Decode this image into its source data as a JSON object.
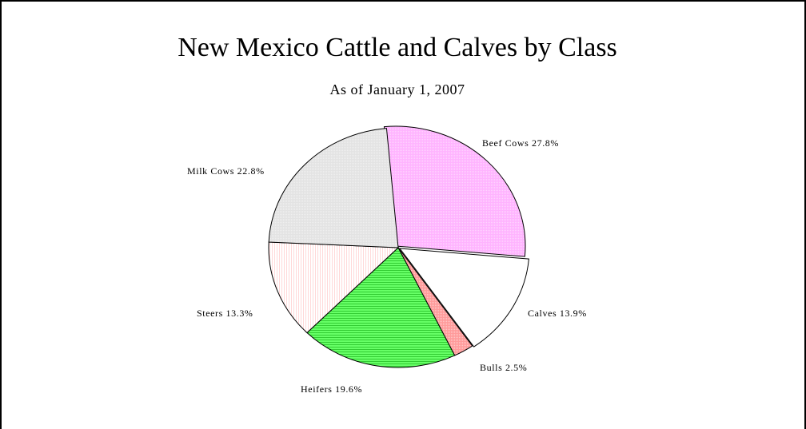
{
  "chart_data": {
    "type": "pie",
    "title": "New Mexico Cattle and Calves by Class",
    "subtitle": "As of January 1, 2007",
    "slices": [
      {
        "name": "Beef Cows",
        "value": 27.8,
        "label": "Beef Cows 27.8%",
        "color": "#ffb3ff",
        "pattern": "dots"
      },
      {
        "name": "Calves",
        "value": 13.9,
        "label": "Calves 13.9%",
        "color": "#ffffff",
        "pattern": "none"
      },
      {
        "name": "Bulls",
        "value": 2.5,
        "label": "Bulls 2.5%",
        "color": "#ff9a9a",
        "pattern": "dots"
      },
      {
        "name": "Heifers",
        "value": 19.6,
        "label": "Heifers 19.6%",
        "color": "#66ff66",
        "pattern": "hlines"
      },
      {
        "name": "Steers",
        "value": 13.3,
        "label": "Steers 13.3%",
        "color": "#ffd9d9",
        "pattern": "vlines"
      },
      {
        "name": "Milk Cows",
        "value": 22.8,
        "label": "Milk Cows 22.8%",
        "color": "#e3e3e3",
        "pattern": "dots"
      }
    ]
  }
}
